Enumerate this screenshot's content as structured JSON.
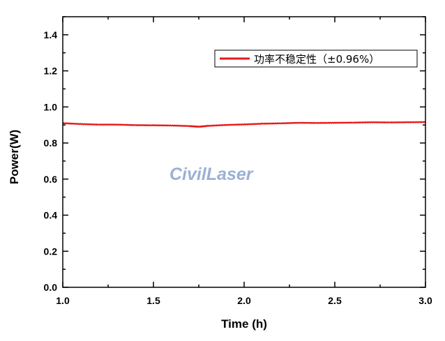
{
  "chart_data": {
    "type": "line",
    "title": "",
    "xlabel": "Time (h)",
    "ylabel": "Power(W)",
    "xlim": [
      1.0,
      3.0
    ],
    "ylim": [
      0.0,
      1.5
    ],
    "x_ticks": [
      "1.0",
      "1.5",
      "2.0",
      "2.5",
      "3.0"
    ],
    "y_ticks": [
      "0.0",
      "0.2",
      "0.4",
      "0.6",
      "0.8",
      "1.0",
      "1.2",
      "1.4"
    ],
    "grid": false,
    "legend_position": "top-right",
    "series": [
      {
        "name": "功率不稳定性（±0.96%）",
        "color": "#e8191b",
        "x": [
          1.0,
          1.1,
          1.2,
          1.3,
          1.4,
          1.5,
          1.6,
          1.7,
          1.75,
          1.8,
          1.9,
          2.0,
          2.1,
          2.2,
          2.3,
          2.4,
          2.5,
          2.6,
          2.7,
          2.8,
          2.9,
          3.0
        ],
        "y": [
          0.91,
          0.905,
          0.902,
          0.902,
          0.899,
          0.898,
          0.897,
          0.894,
          0.89,
          0.895,
          0.9,
          0.903,
          0.907,
          0.909,
          0.912,
          0.911,
          0.912,
          0.913,
          0.915,
          0.914,
          0.915,
          0.916
        ]
      }
    ]
  },
  "watermark": {
    "text": "CivilLaser"
  }
}
